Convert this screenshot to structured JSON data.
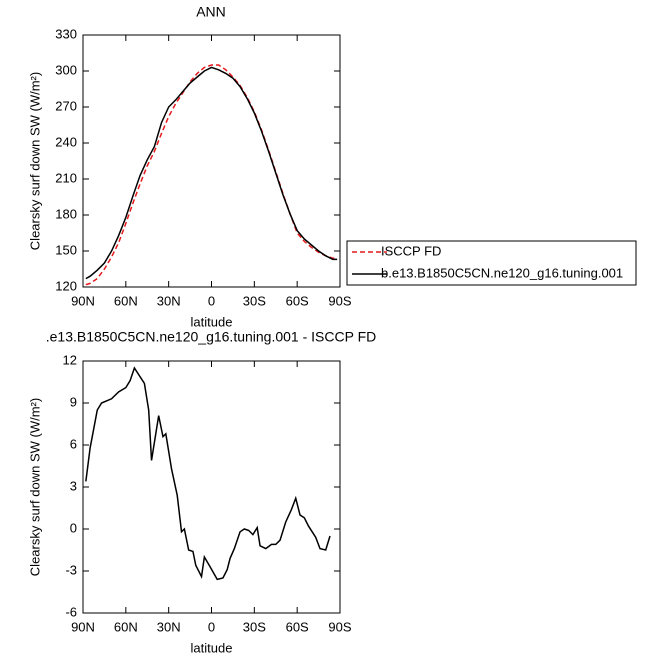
{
  "chart_data": [
    {
      "type": "line",
      "title": "ANN",
      "xlabel": "latitude",
      "ylabel": "Clearsky surf down SW (W/m²)",
      "xlim": [
        90,
        -90
      ],
      "xticks": [
        {
          "value": 90,
          "label": "90N"
        },
        {
          "value": 60,
          "label": "60N"
        },
        {
          "value": 30,
          "label": "30N"
        },
        0,
        {
          "value": -30,
          "label": "30S"
        },
        {
          "value": -60,
          "label": "60S"
        },
        {
          "value": -90,
          "label": "90S"
        }
      ],
      "ylim": [
        120,
        330
      ],
      "yticks": [
        120,
        150,
        180,
        210,
        240,
        270,
        300,
        330
      ],
      "legend": "right",
      "series": [
        {
          "name": "ISCCP FD",
          "color": "#e41a1c",
          "dash": "dashed",
          "x": [
            88,
            85,
            80,
            75,
            70,
            65,
            60,
            55,
            50,
            45,
            40,
            35,
            30,
            25,
            20,
            15,
            10,
            5,
            0,
            -5,
            -10,
            -15,
            -20,
            -25,
            -30,
            -35,
            -40,
            -45,
            -50,
            -55,
            -60,
            -65,
            -70,
            -75,
            -80,
            -85,
            -88
          ],
          "values": [
            122,
            123,
            127,
            135,
            145,
            157,
            173,
            190,
            206,
            221,
            233,
            248,
            262,
            273,
            282,
            291,
            298,
            303,
            305,
            305,
            301,
            295,
            288,
            278,
            266,
            251,
            234,
            216,
            198,
            181,
            165,
            158,
            153,
            149,
            146,
            144,
            144
          ]
        },
        {
          "name": "b.e13.B1850C5CN.ne120_g16.tuning.001",
          "color": "#000000",
          "dash": "solid",
          "x": [
            88,
            85,
            80,
            75,
            70,
            65,
            60,
            55,
            50,
            45,
            40,
            35,
            30,
            25,
            20,
            15,
            10,
            5,
            0,
            -5,
            -10,
            -15,
            -20,
            -25,
            -30,
            -35,
            -40,
            -45,
            -50,
            -55,
            -60,
            -65,
            -70,
            -75,
            -80,
            -85,
            -88
          ],
          "values": [
            127,
            129,
            134,
            140,
            150,
            163,
            178,
            196,
            213,
            226,
            237,
            257,
            270,
            276,
            283,
            290,
            295,
            300,
            303,
            301,
            298,
            294,
            287,
            277,
            265,
            250,
            233,
            215,
            197,
            181,
            167,
            160,
            155,
            150,
            146,
            143,
            143
          ]
        }
      ]
    },
    {
      "type": "line",
      "title": ".e13.B1850C5CN.ne120_g16.tuning.001 - ISCCP FD",
      "xlabel": "latitude",
      "ylabel": "Clearsky surf down SW (W/m²)",
      "xlim": [
        90,
        -90
      ],
      "xticks": [
        {
          "value": 90,
          "label": "90N"
        },
        {
          "value": 60,
          "label": "60N"
        },
        {
          "value": 30,
          "label": "30N"
        },
        0,
        {
          "value": -30,
          "label": "30S"
        },
        {
          "value": -60,
          "label": "60S"
        },
        {
          "value": -90,
          "label": "90S"
        }
      ],
      "ylim": [
        -6,
        12
      ],
      "yticks": [
        -6,
        -3,
        0,
        3,
        6,
        9,
        12
      ],
      "series": [
        {
          "color": "#000000",
          "dash": "solid",
          "x": [
            88,
            85,
            80,
            77,
            70,
            65,
            60,
            57,
            54,
            47,
            44,
            42,
            37,
            34,
            32,
            28,
            24,
            21,
            19,
            16,
            13,
            11,
            7,
            5,
            1,
            -4,
            -8,
            -11,
            -13,
            -16,
            -20,
            -23,
            -26,
            -29,
            -32,
            -34,
            -38,
            -42,
            -45,
            -48,
            -52,
            -56,
            -59,
            -62,
            -65,
            -68,
            -73,
            -76,
            -80,
            -83
          ],
          "values": [
            3.4,
            5.8,
            8.5,
            9.0,
            9.3,
            9.8,
            10.1,
            10.6,
            11.5,
            10.4,
            8.5,
            4.9,
            8.1,
            6.6,
            6.8,
            4.3,
            2.4,
            -0.2,
            0,
            -1.5,
            -1.6,
            -2.6,
            -3.4,
            -2.0,
            -2.7,
            -3.6,
            -3.5,
            -2.9,
            -2.1,
            -1.4,
            -0.2,
            0,
            -0.1,
            -0.4,
            0.1,
            -1.2,
            -1.4,
            -1.1,
            -1.1,
            -0.8,
            0.5,
            1.4,
            2.2,
            1.0,
            0.8,
            0.2,
            -0.6,
            -1.4,
            -1.5,
            -0.5
          ]
        }
      ]
    }
  ]
}
